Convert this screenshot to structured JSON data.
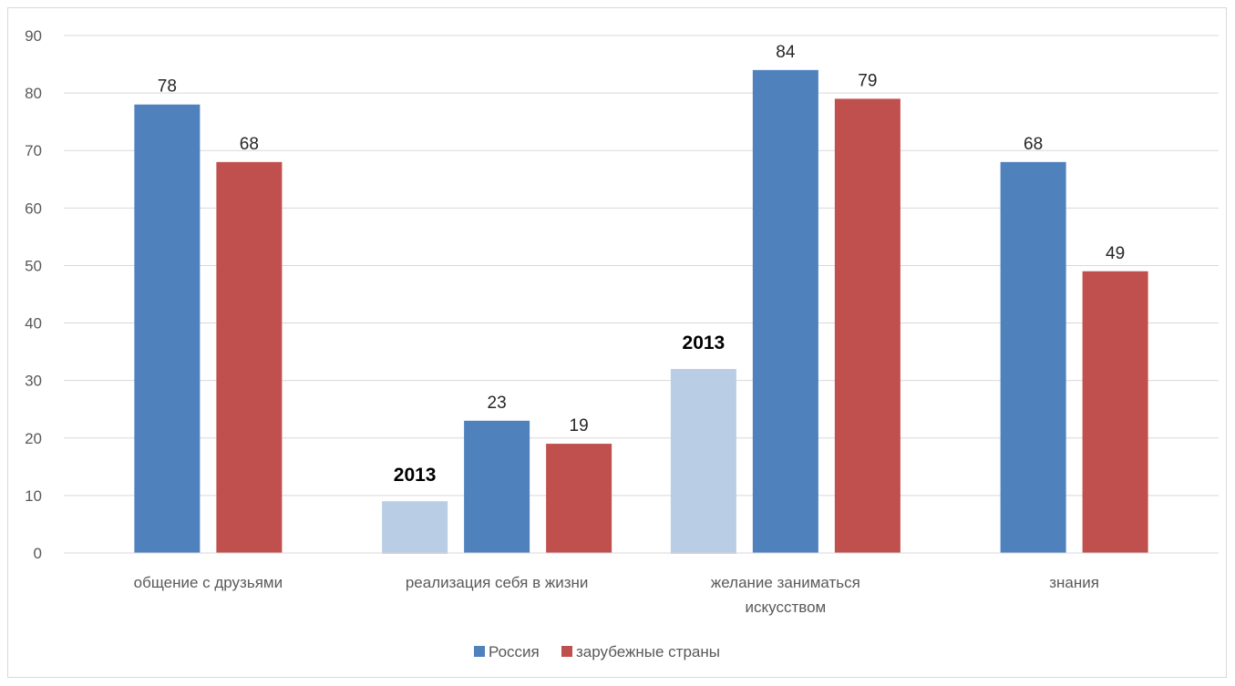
{
  "chart_data": {
    "type": "bar",
    "categories": [
      [
        "общение с друзьями"
      ],
      [
        "реализация себя в жизни"
      ],
      [
        "желание заниматься",
        "искусством"
      ],
      [
        "знания"
      ]
    ],
    "series": [
      {
        "name": "Россия",
        "color": "#4F81BD",
        "values": [
          78,
          23,
          84,
          68
        ]
      },
      {
        "name": "зарубежные страны",
        "color": "#C0504D",
        "values": [
          68,
          19,
          79,
          49
        ]
      }
    ],
    "annotation_series": {
      "color": "#B9CDE5",
      "label": "2013",
      "values": [
        null,
        9,
        32,
        null
      ]
    },
    "ylim": [
      0,
      90
    ],
    "yticks": [
      0,
      10,
      20,
      30,
      40,
      50,
      60,
      70,
      80,
      90
    ],
    "grid": true,
    "legend_position": "bottom",
    "title": "",
    "xlabel": "",
    "ylabel": ""
  }
}
